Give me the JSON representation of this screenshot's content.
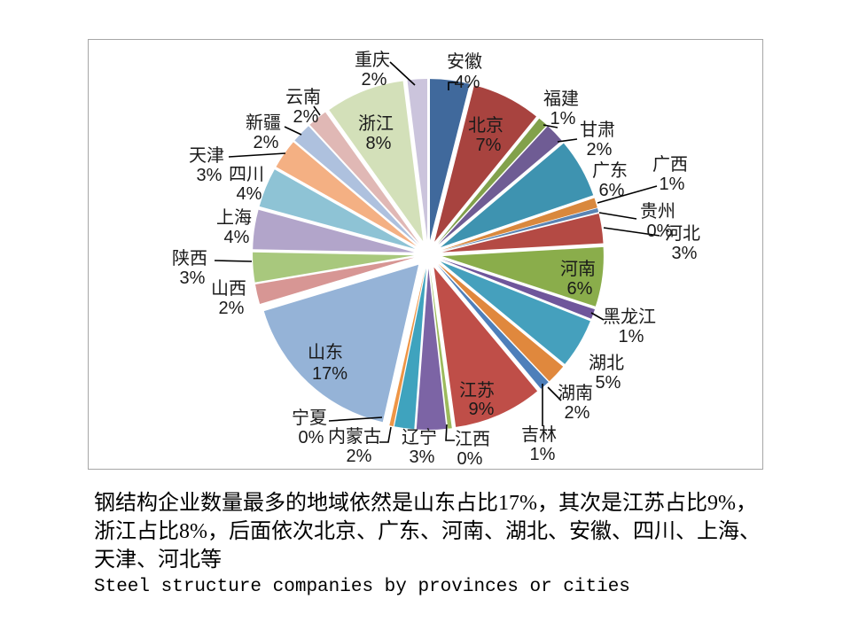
{
  "chart_data": {
    "type": "pie",
    "title": "",
    "legend": "none",
    "style": "exploded-pie",
    "label_format": "category + percent",
    "categories": [
      "安徽",
      "北京",
      "福建",
      "甘肃",
      "广东",
      "广西",
      "贵州",
      "河北",
      "河南",
      "黑龙江",
      "湖北",
      "湖南",
      "吉林",
      "江苏",
      "江西",
      "辽宁",
      "内蒙古",
      "宁夏",
      "山东",
      "山西",
      "陕西",
      "上海",
      "四川",
      "天津",
      "新疆",
      "云南",
      "浙江",
      "重庆"
    ],
    "values": [
      4,
      7,
      1,
      2,
      6,
      1,
      0,
      3,
      6,
      1,
      5,
      2,
      1,
      9,
      0,
      3,
      2,
      0,
      17,
      2,
      3,
      4,
      4,
      3,
      2,
      2,
      8,
      2
    ],
    "unit": "%",
    "colors": [
      "#40699C",
      "#A8433F",
      "#82A14B",
      "#6F5C94",
      "#3E93B0",
      "#D9883D",
      "#5A84B4",
      "#B44A44",
      "#8AAD4B",
      "#6F569B",
      "#45A0BD",
      "#E0883D",
      "#4E7FBA",
      "#BF4E48",
      "#9CBA5C",
      "#7C64A5",
      "#3FA3BE",
      "#EE9546",
      "#95B3D7",
      "#D79694",
      "#A8C87D",
      "#B2A5CA",
      "#8EC3D5",
      "#F4B083",
      "#AEC1DE",
      "#E0B8B5",
      "#D3E0B9",
      "#CBC4DC"
    ],
    "border_color": "#A6A6A6",
    "leader_line_color": "#000000"
  },
  "caption": {
    "line1": "钢结构企业数量最多的地域依然是山东占比17%，其次是江苏占比9%，",
    "line2": "浙江占比8%，后面依次北京、广东、河南、湖北、安徽、四川、上海、",
    "line3": "天津、河北等",
    "line4": "Steel structure companies by provinces or cities"
  }
}
